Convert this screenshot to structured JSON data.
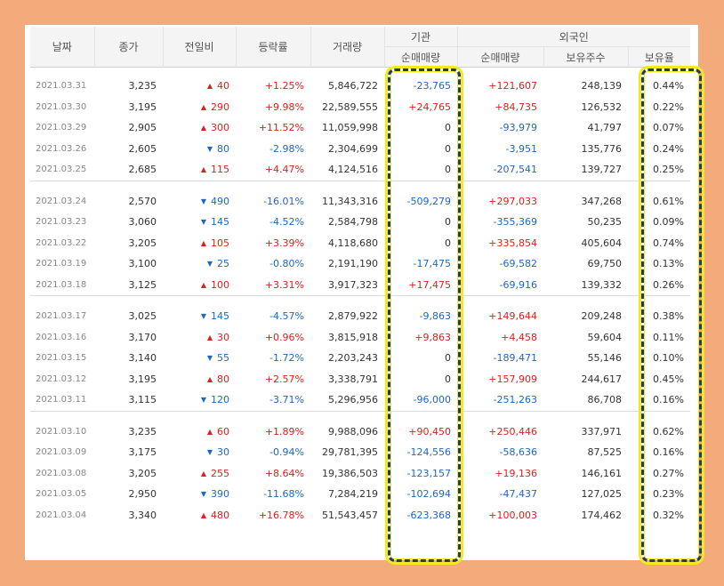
{
  "colors": {
    "frame_bg": "#f4ab7c",
    "up": "#d9221c",
    "down": "#1d67c4",
    "highlight_outer": "#f2ea1a",
    "highlight_dash": "#1f3b64"
  },
  "header": {
    "date": "날짜",
    "close": "종가",
    "change": "전일비",
    "rate": "등락률",
    "volume": "거래량",
    "institution_group": "기관",
    "institution_net": "순매매량",
    "foreign_group": "외국인",
    "foreign_net": "순매매량",
    "foreign_holding": "보유주수",
    "foreign_ratio": "보유율"
  },
  "icons": {
    "up": "▲",
    "down": "▼"
  },
  "rows": [
    {
      "date": "2021.03.31",
      "close": "3,235",
      "dir": "up",
      "change": "40",
      "rate": "+1.25%",
      "rate_dir": "up",
      "volume": "5,846,722",
      "inst": "-23,765",
      "inst_dir": "down",
      "foreign": "+121,607",
      "foreign_dir": "up",
      "holding": "248,139",
      "ratio": "0.44%"
    },
    {
      "date": "2021.03.30",
      "close": "3,195",
      "dir": "up",
      "change": "290",
      "rate": "+9.98%",
      "rate_dir": "up",
      "volume": "22,589,555",
      "inst": "+24,765",
      "inst_dir": "up",
      "foreign": "+84,735",
      "foreign_dir": "up",
      "holding": "126,532",
      "ratio": "0.22%"
    },
    {
      "date": "2021.03.29",
      "close": "2,905",
      "dir": "up",
      "change": "300",
      "rate": "+11.52%",
      "rate_dir": "up",
      "volume": "11,059,998",
      "inst": "0",
      "inst_dir": "neutral",
      "foreign": "-93,979",
      "foreign_dir": "down",
      "holding": "41,797",
      "ratio": "0.07%"
    },
    {
      "date": "2021.03.26",
      "close": "2,605",
      "dir": "down",
      "change": "80",
      "rate": "-2.98%",
      "rate_dir": "down",
      "volume": "2,304,699",
      "inst": "0",
      "inst_dir": "neutral",
      "foreign": "-3,951",
      "foreign_dir": "down",
      "holding": "135,776",
      "ratio": "0.24%"
    },
    {
      "date": "2021.03.25",
      "close": "2,685",
      "dir": "up",
      "change": "115",
      "rate": "+4.47%",
      "rate_dir": "up",
      "volume": "4,124,516",
      "inst": "0",
      "inst_dir": "neutral",
      "foreign": "-207,541",
      "foreign_dir": "down",
      "holding": "139,727",
      "ratio": "0.25%"
    },
    {
      "date": "2021.03.24",
      "close": "2,570",
      "dir": "down",
      "change": "490",
      "rate": "-16.01%",
      "rate_dir": "down",
      "volume": "11,343,316",
      "inst": "-509,279",
      "inst_dir": "down",
      "foreign": "+297,033",
      "foreign_dir": "up",
      "holding": "347,268",
      "ratio": "0.61%"
    },
    {
      "date": "2021.03.23",
      "close": "3,060",
      "dir": "down",
      "change": "145",
      "rate": "-4.52%",
      "rate_dir": "down",
      "volume": "2,584,798",
      "inst": "0",
      "inst_dir": "neutral",
      "foreign": "-355,369",
      "foreign_dir": "down",
      "holding": "50,235",
      "ratio": "0.09%"
    },
    {
      "date": "2021.03.22",
      "close": "3,205",
      "dir": "up",
      "change": "105",
      "rate": "+3.39%",
      "rate_dir": "up",
      "volume": "4,118,680",
      "inst": "0",
      "inst_dir": "neutral",
      "foreign": "+335,854",
      "foreign_dir": "up",
      "holding": "405,604",
      "ratio": "0.74%"
    },
    {
      "date": "2021.03.19",
      "close": "3,100",
      "dir": "down",
      "change": "25",
      "rate": "-0.80%",
      "rate_dir": "down",
      "volume": "2,191,190",
      "inst": "-17,475",
      "inst_dir": "down",
      "foreign": "-69,582",
      "foreign_dir": "down",
      "holding": "69,750",
      "ratio": "0.13%"
    },
    {
      "date": "2021.03.18",
      "close": "3,125",
      "dir": "up",
      "change": "100",
      "rate": "+3.31%",
      "rate_dir": "up",
      "volume": "3,917,323",
      "inst": "+17,475",
      "inst_dir": "up",
      "foreign": "-69,916",
      "foreign_dir": "down",
      "holding": "139,332",
      "ratio": "0.26%"
    },
    {
      "date": "2021.03.17",
      "close": "3,025",
      "dir": "down",
      "change": "145",
      "rate": "-4.57%",
      "rate_dir": "down",
      "volume": "2,879,922",
      "inst": "-9,863",
      "inst_dir": "down",
      "foreign": "+149,644",
      "foreign_dir": "up",
      "holding": "209,248",
      "ratio": "0.38%"
    },
    {
      "date": "2021.03.16",
      "close": "3,170",
      "dir": "up",
      "change": "30",
      "rate": "+0.96%",
      "rate_dir": "up",
      "volume": "3,815,918",
      "inst": "+9,863",
      "inst_dir": "up",
      "foreign": "+4,458",
      "foreign_dir": "up",
      "holding": "59,604",
      "ratio": "0.11%"
    },
    {
      "date": "2021.03.15",
      "close": "3,140",
      "dir": "down",
      "change": "55",
      "rate": "-1.72%",
      "rate_dir": "down",
      "volume": "2,203,243",
      "inst": "0",
      "inst_dir": "neutral",
      "foreign": "-189,471",
      "foreign_dir": "down",
      "holding": "55,146",
      "ratio": "0.10%"
    },
    {
      "date": "2021.03.12",
      "close": "3,195",
      "dir": "up",
      "change": "80",
      "rate": "+2.57%",
      "rate_dir": "up",
      "volume": "3,338,791",
      "inst": "0",
      "inst_dir": "neutral",
      "foreign": "+157,909",
      "foreign_dir": "up",
      "holding": "244,617",
      "ratio": "0.45%"
    },
    {
      "date": "2021.03.11",
      "close": "3,115",
      "dir": "down",
      "change": "120",
      "rate": "-3.71%",
      "rate_dir": "down",
      "volume": "5,296,956",
      "inst": "-96,000",
      "inst_dir": "down",
      "foreign": "-251,263",
      "foreign_dir": "down",
      "holding": "86,708",
      "ratio": "0.16%"
    },
    {
      "date": "2021.03.10",
      "close": "3,235",
      "dir": "up",
      "change": "60",
      "rate": "+1.89%",
      "rate_dir": "up",
      "volume": "9,988,096",
      "inst": "+90,450",
      "inst_dir": "up",
      "foreign": "+250,446",
      "foreign_dir": "up",
      "holding": "337,971",
      "ratio": "0.62%"
    },
    {
      "date": "2021.03.09",
      "close": "3,175",
      "dir": "down",
      "change": "30",
      "rate": "-0.94%",
      "rate_dir": "down",
      "volume": "29,781,395",
      "inst": "-124,556",
      "inst_dir": "down",
      "foreign": "-58,636",
      "foreign_dir": "down",
      "holding": "87,525",
      "ratio": "0.16%"
    },
    {
      "date": "2021.03.08",
      "close": "3,205",
      "dir": "up",
      "change": "255",
      "rate": "+8.64%",
      "rate_dir": "up",
      "volume": "19,386,503",
      "inst": "-123,157",
      "inst_dir": "down",
      "foreign": "+19,136",
      "foreign_dir": "up",
      "holding": "146,161",
      "ratio": "0.27%"
    },
    {
      "date": "2021.03.05",
      "close": "2,950",
      "dir": "down",
      "change": "390",
      "rate": "-11.68%",
      "rate_dir": "down",
      "volume": "7,284,219",
      "inst": "-102,694",
      "inst_dir": "down",
      "foreign": "-47,437",
      "foreign_dir": "down",
      "holding": "127,025",
      "ratio": "0.23%"
    },
    {
      "date": "2021.03.04",
      "close": "3,340",
      "dir": "up",
      "change": "480",
      "rate": "+16.78%",
      "rate_dir": "up",
      "volume": "51,543,457",
      "inst": "-623,368",
      "inst_dir": "down",
      "foreign": "+100,003",
      "foreign_dir": "up",
      "holding": "174,462",
      "ratio": "0.32%"
    }
  ]
}
